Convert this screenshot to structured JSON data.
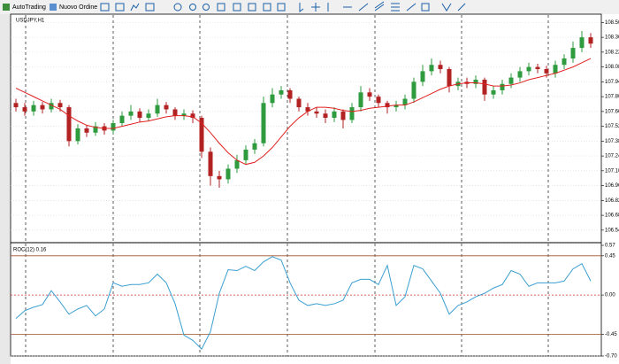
{
  "toolbar": {
    "buttons": [
      "AutoTrading",
      "Nuovo Ordine"
    ]
  },
  "chart_data": [
    {
      "type": "candlestick",
      "title": "USDJPY,H1",
      "open": [
        107.74,
        107.7,
        107.66,
        107.72,
        107.68,
        107.74,
        107.7,
        107.38,
        107.5,
        107.46,
        107.52,
        107.48,
        107.55,
        107.62,
        107.66,
        107.6,
        107.64,
        107.72,
        107.68,
        107.62,
        107.64,
        107.6,
        107.28,
        107.05,
        107.02,
        107.12,
        107.2,
        107.3,
        107.36,
        107.74,
        107.82,
        107.86,
        107.78,
        107.7,
        107.66,
        107.64,
        107.6,
        107.66,
        107.58,
        107.7,
        107.84,
        107.8,
        107.74,
        107.7,
        107.72,
        107.78,
        107.94,
        108.04,
        108.1,
        108.06,
        107.9,
        107.94,
        107.92,
        107.96,
        107.82,
        107.86,
        107.92,
        107.98,
        108.04,
        108.08,
        108.06,
        108.02,
        108.1,
        108.16,
        108.26,
        108.36
      ],
      "high": [
        107.78,
        107.74,
        107.76,
        107.75,
        107.78,
        107.77,
        107.72,
        107.54,
        107.53,
        107.56,
        107.55,
        107.58,
        107.66,
        107.72,
        107.69,
        107.68,
        107.78,
        107.75,
        107.7,
        107.68,
        107.67,
        107.62,
        107.32,
        107.1,
        107.16,
        107.25,
        107.34,
        107.4,
        107.8,
        107.88,
        107.9,
        107.88,
        107.8,
        107.74,
        107.7,
        107.68,
        107.7,
        107.68,
        107.74,
        107.9,
        107.88,
        107.82,
        107.76,
        107.76,
        107.82,
        107.98,
        108.1,
        108.16,
        108.14,
        108.08,
        107.98,
        107.98,
        108.0,
        107.98,
        107.9,
        107.96,
        108.02,
        108.08,
        108.12,
        108.11,
        108.09,
        108.14,
        108.2,
        108.32,
        108.42,
        108.4
      ],
      "low": [
        107.66,
        107.62,
        107.62,
        107.64,
        107.65,
        107.66,
        107.33,
        107.35,
        107.42,
        107.43,
        107.44,
        107.45,
        107.52,
        107.58,
        107.56,
        107.57,
        107.61,
        107.64,
        107.58,
        107.58,
        107.55,
        107.22,
        106.96,
        106.94,
        106.98,
        107.08,
        107.16,
        107.26,
        107.33,
        107.7,
        107.78,
        107.74,
        107.66,
        107.62,
        107.6,
        107.55,
        107.56,
        107.5,
        107.55,
        107.66,
        107.76,
        107.7,
        107.64,
        107.66,
        107.68,
        107.74,
        107.9,
        108.0,
        108.02,
        107.84,
        107.86,
        107.88,
        107.88,
        107.76,
        107.78,
        107.82,
        107.88,
        107.94,
        108.0,
        108.02,
        107.98,
        107.98,
        108.06,
        108.12,
        108.22,
        108.26
      ],
      "close": [
        107.7,
        107.66,
        107.72,
        107.68,
        107.74,
        107.7,
        107.38,
        107.5,
        107.46,
        107.52,
        107.48,
        107.55,
        107.62,
        107.66,
        107.6,
        107.64,
        107.72,
        107.68,
        107.62,
        107.64,
        107.6,
        107.28,
        107.05,
        107.02,
        107.12,
        107.2,
        107.3,
        107.36,
        107.74,
        107.82,
        107.86,
        107.78,
        107.7,
        107.66,
        107.64,
        107.6,
        107.66,
        107.58,
        107.7,
        107.84,
        107.8,
        107.74,
        107.7,
        107.72,
        107.78,
        107.94,
        108.04,
        108.1,
        108.06,
        107.9,
        107.94,
        107.92,
        107.96,
        107.82,
        107.86,
        107.92,
        107.98,
        108.04,
        108.08,
        108.06,
        108.02,
        108.1,
        108.16,
        108.26,
        108.36,
        108.3
      ],
      "up_color": "#2e9b3e",
      "down_color": "#b22222",
      "series": [
        {
          "color": "#e02020",
          "values": [
            107.88,
            107.84,
            107.8,
            107.76,
            107.72,
            107.68,
            107.62,
            107.57,
            107.53,
            107.51,
            107.5,
            107.5,
            107.52,
            107.54,
            107.56,
            107.57,
            107.59,
            107.61,
            107.62,
            107.62,
            107.61,
            107.55,
            107.46,
            107.36,
            107.27,
            107.2,
            107.16,
            107.18,
            107.24,
            107.32,
            107.42,
            107.52,
            107.6,
            107.66,
            107.7,
            107.7,
            107.69,
            107.67,
            107.66,
            107.67,
            107.69,
            107.7,
            107.71,
            107.72,
            107.72,
            107.75,
            107.79,
            107.83,
            107.87,
            107.9,
            107.92,
            107.93,
            107.93,
            107.92,
            107.9,
            107.9,
            107.91,
            107.93,
            107.96,
            107.98,
            108.0,
            108.02,
            108.05,
            108.08,
            108.12,
            108.16
          ]
        }
      ],
      "ylim": [
        106.43,
        108.57
      ],
      "yticks": [
        {
          "value": 108.5,
          "label": "108.500"
        },
        {
          "value": 108.36,
          "label": "108.360"
        },
        {
          "value": 108.22,
          "label": "108.220"
        },
        {
          "value": 108.08,
          "label": "108.080"
        },
        {
          "value": 107.94,
          "label": "107.940"
        },
        {
          "value": 107.8,
          "label": "107.800"
        },
        {
          "value": 107.66,
          "label": "107.660"
        },
        {
          "value": 107.52,
          "label": "107.520"
        },
        {
          "value": 107.38,
          "label": "107.380"
        },
        {
          "value": 107.24,
          "label": "107.240"
        },
        {
          "value": 107.1,
          "label": "107.100"
        },
        {
          "value": 106.96,
          "label": "106.960"
        },
        {
          "value": 106.82,
          "label": "106.820"
        },
        {
          "value": 106.68,
          "label": "106.680"
        },
        {
          "value": 106.54,
          "label": "106.540"
        }
      ],
      "grid": true
    },
    {
      "type": "line",
      "title": "ROC(12) 0.16",
      "series": [
        {
          "color": "#3a9fd0",
          "values": [
            -0.27,
            -0.18,
            -0.14,
            -0.11,
            0.05,
            -0.08,
            -0.22,
            -0.16,
            -0.12,
            -0.24,
            -0.16,
            0.14,
            0.1,
            0.12,
            0.12,
            0.14,
            0.24,
            0.14,
            -0.1,
            -0.46,
            -0.52,
            -0.62,
            -0.42,
            0.02,
            0.29,
            0.28,
            0.33,
            0.28,
            0.38,
            0.44,
            0.4,
            0.14,
            -0.06,
            -0.12,
            -0.1,
            -0.12,
            -0.1,
            -0.06,
            0.14,
            0.18,
            0.18,
            0.12,
            0.34,
            -0.12,
            -0.02,
            0.34,
            0.3,
            0.16,
            0.02,
            -0.22,
            -0.12,
            -0.08,
            -0.02,
            0.02,
            0.08,
            0.12,
            0.28,
            0.24,
            0.1,
            0.14,
            0.14,
            0.14,
            0.16,
            0.3,
            0.36,
            0.16
          ]
        }
      ],
      "levels": [
        0.45,
        0,
        -0.45
      ],
      "level_color": "#a0522d",
      "zero_color": "#d03030",
      "ylim": [
        -0.7,
        0.57
      ],
      "yticks": [
        0.57,
        0.45,
        {
          "value": 0,
          "label": "0.00"
        },
        -0.45,
        {
          "value": -0.7,
          "label": "-0.70"
        }
      ],
      "grid": true
    }
  ]
}
